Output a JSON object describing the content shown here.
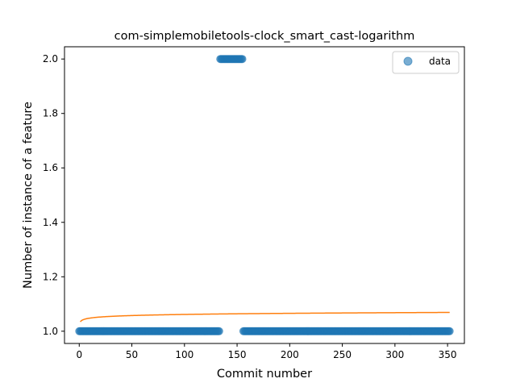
{
  "chart_data": {
    "type": "scatter",
    "title": "com-simplemobiletools-clock_smart_cast-logarithm",
    "xlabel": "Commit number",
    "ylabel": "Number of instance of a feature",
    "xlim": [
      -14,
      366
    ],
    "ylim": [
      0.955,
      2.045
    ],
    "xticks": [
      0,
      50,
      100,
      150,
      200,
      250,
      300,
      350
    ],
    "yticks": [
      1.0,
      1.2,
      1.4,
      1.6,
      1.8,
      2.0
    ],
    "ytick_labels": [
      "1.0",
      "1.2",
      "1.4",
      "1.6",
      "1.8",
      "2.0"
    ],
    "grid": false,
    "legend": {
      "position": "top-right",
      "entries": [
        "data"
      ]
    },
    "series": [
      {
        "name": "data",
        "kind": "scatter",
        "color": "#1f77b4",
        "segments": [
          {
            "x_from": 0,
            "x_to": 133,
            "y": 1.0
          },
          {
            "x_from": 134,
            "x_to": 155,
            "y": 2.0
          },
          {
            "x_from": 156,
            "x_to": 352,
            "y": 1.0
          }
        ]
      },
      {
        "kind": "line",
        "color": "#ff7f0e",
        "fit": "logarithmic",
        "a": 1.0345,
        "b": 0.00589,
        "x_from": 1,
        "x_to": 352
      }
    ]
  }
}
